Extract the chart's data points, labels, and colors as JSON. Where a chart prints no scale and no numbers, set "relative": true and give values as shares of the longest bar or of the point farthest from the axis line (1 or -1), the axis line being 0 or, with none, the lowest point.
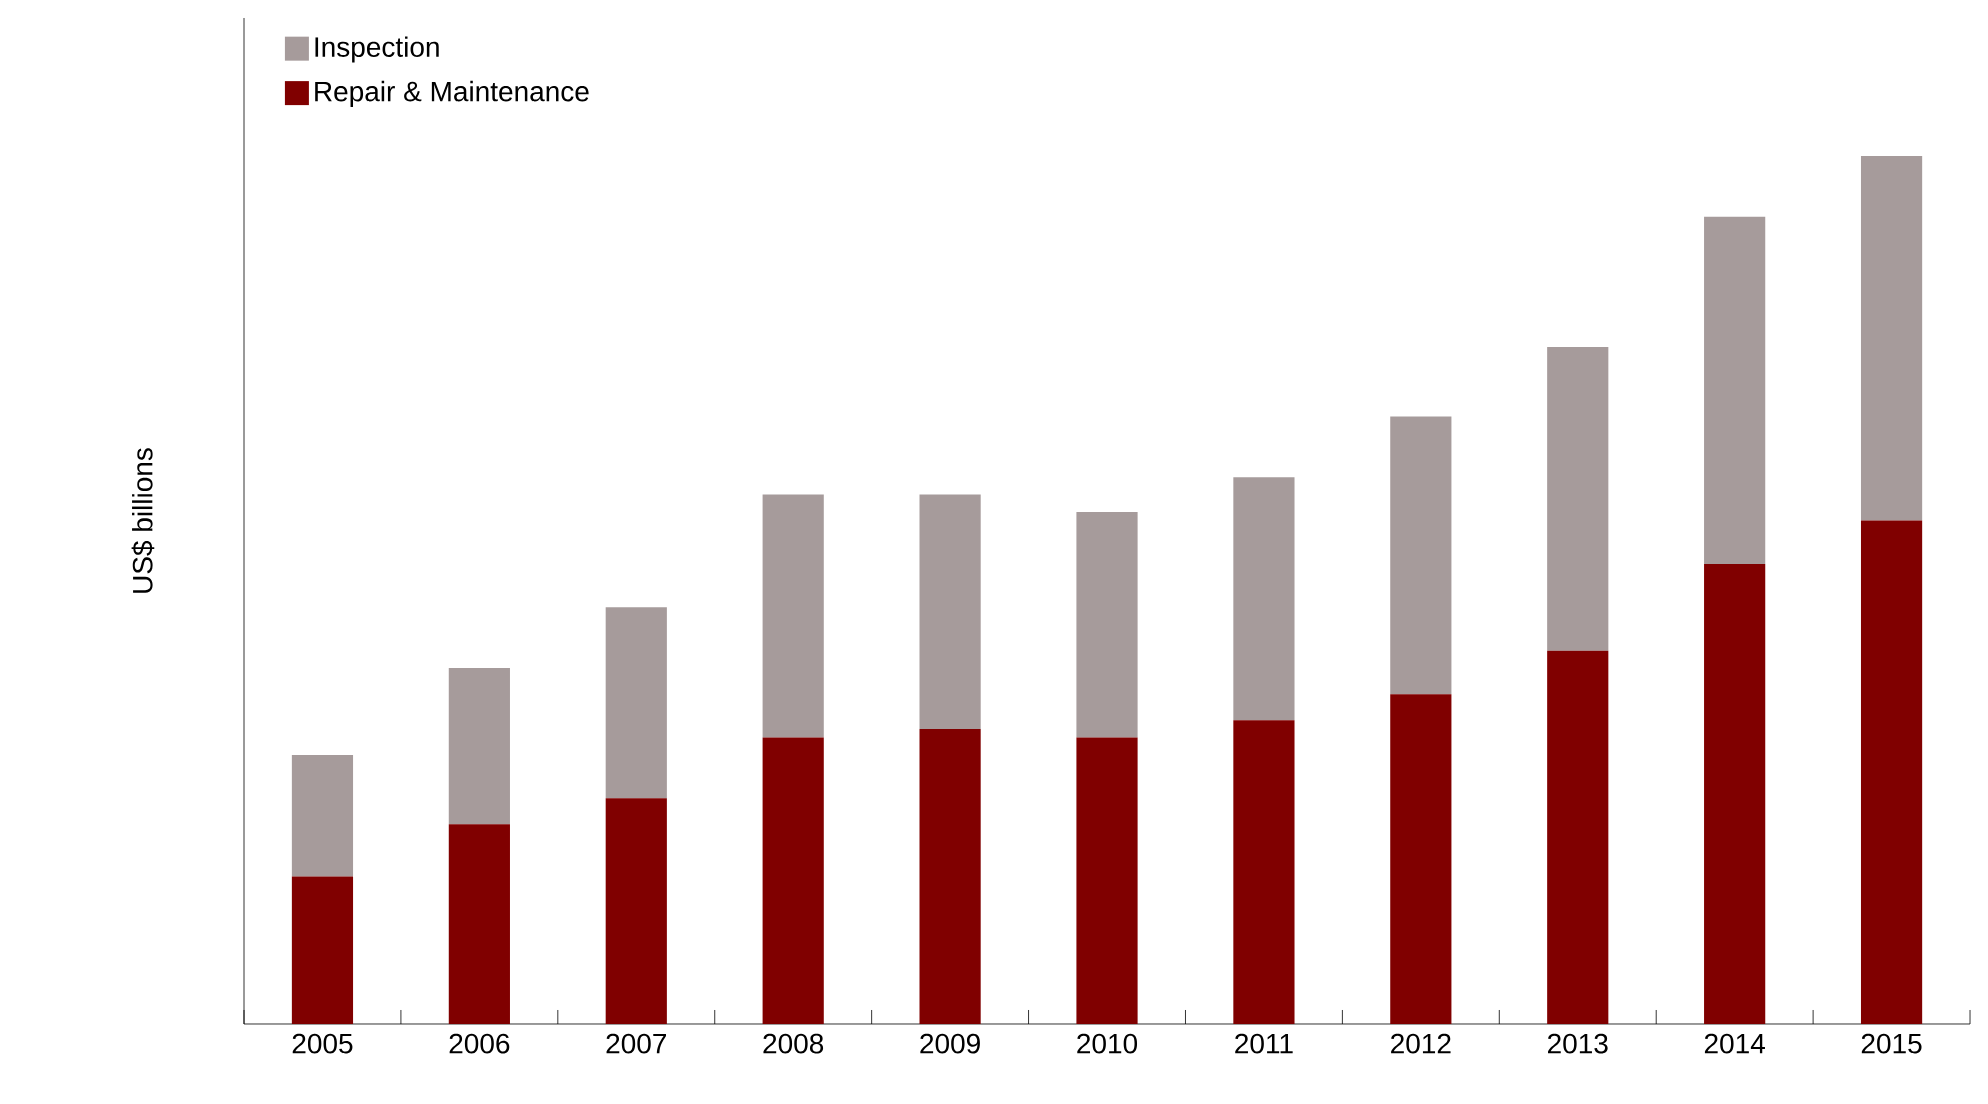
{
  "chart_data": {
    "type": "bar",
    "stacked": true,
    "relative": true,
    "ylabel": "US$ billions",
    "legend": "top left",
    "categories": [
      "2005",
      "2006",
      "2007",
      "2008",
      "2009",
      "2010",
      "2011",
      "2012",
      "2013",
      "2014",
      "2015"
    ],
    "series": [
      {
        "name": "Repair & Maintenance",
        "color": "#800000",
        "values": [
          0.17,
          0.23,
          0.26,
          0.33,
          0.34,
          0.33,
          0.35,
          0.38,
          0.43,
          0.53,
          0.58
        ]
      },
      {
        "name": "Inspection",
        "color": "#a69b9b",
        "values": [
          0.14,
          0.18,
          0.22,
          0.28,
          0.27,
          0.26,
          0.28,
          0.32,
          0.35,
          0.4,
          0.42
        ]
      }
    ]
  }
}
